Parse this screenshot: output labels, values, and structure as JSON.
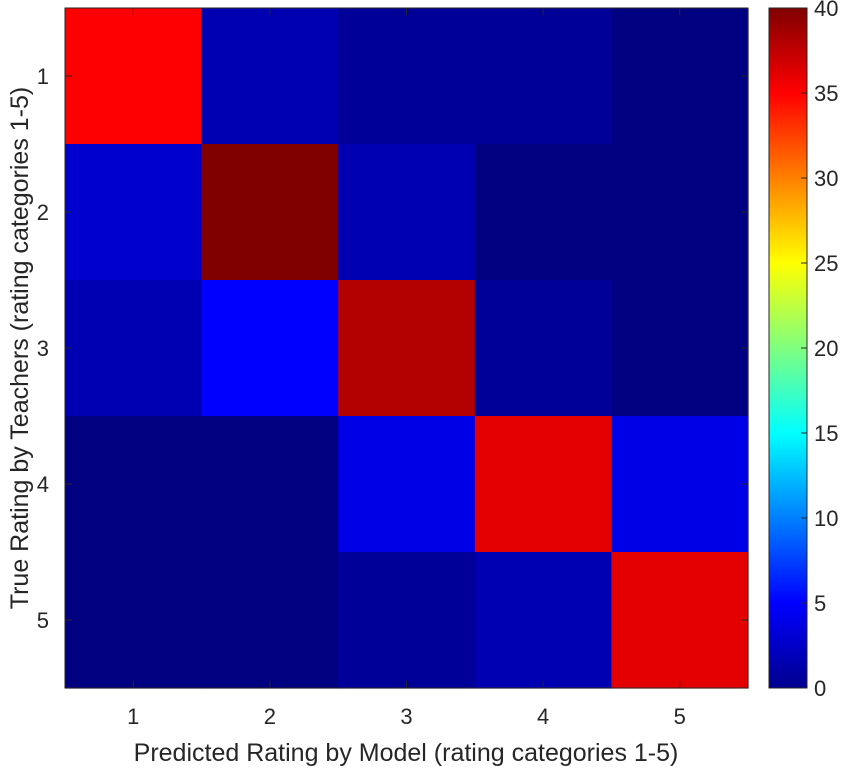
{
  "chart_data": {
    "type": "heatmap",
    "title": "",
    "xlabel": "Predicted Rating by Model (rating categories 1-5)",
    "ylabel": "True Rating by Teachers (rating categories 1-5)",
    "x_categories": [
      "1",
      "2",
      "3",
      "4",
      "5"
    ],
    "y_categories": [
      "1",
      "2",
      "3",
      "4",
      "5"
    ],
    "values": [
      [
        35,
        2,
        1,
        1,
        0
      ],
      [
        3,
        40,
        2,
        0,
        0
      ],
      [
        2,
        5,
        38,
        1,
        0
      ],
      [
        0,
        0,
        4,
        36,
        4
      ],
      [
        0,
        0,
        1,
        2,
        36
      ]
    ],
    "colorbar": {
      "min": 0,
      "max": 40,
      "ticks": [
        0,
        5,
        10,
        15,
        20,
        25,
        30,
        35,
        40
      ],
      "colormap": "jet"
    },
    "grid": false
  }
}
